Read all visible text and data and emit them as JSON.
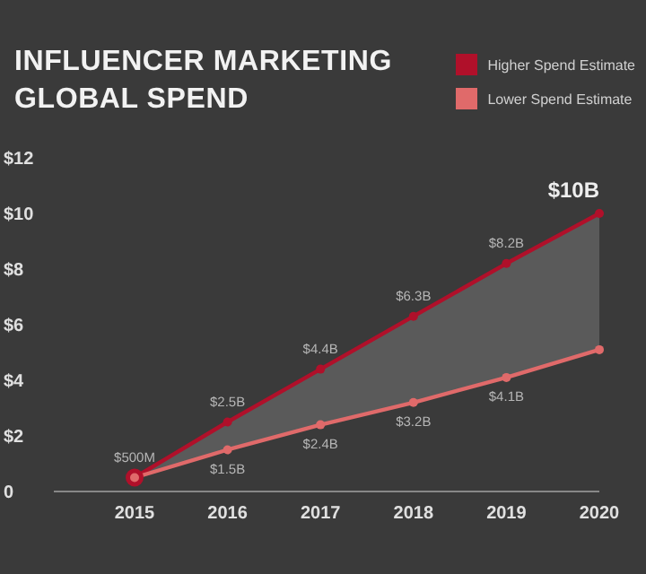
{
  "chart_data": {
    "type": "line",
    "title": "INFLUENCER MARKETING GLOBAL SPEND",
    "categories": [
      "2015",
      "2016",
      "2017",
      "2018",
      "2019",
      "2020"
    ],
    "series": [
      {
        "name": "Higher Spend Estimate",
        "color": "#b0102a",
        "values": [
          0.5,
          2.5,
          4.4,
          6.3,
          8.2,
          10
        ],
        "value_labels": [
          null,
          "$2.5B",
          "$4.4B",
          "$6.3B",
          "$8.2B",
          "$10B"
        ],
        "lower": [
          0.5,
          1.5,
          2.4,
          3.2,
          4.1,
          5.1
        ],
        "upper": [
          0.5,
          2.5,
          4.4,
          6.3,
          8.2,
          10
        ]
      },
      {
        "name": "Lower Spend Estimate",
        "color": "#e06a6a",
        "values": [
          0.5,
          1.5,
          2.4,
          3.2,
          4.1,
          5.1
        ],
        "value_labels": [
          null,
          "$1.5B",
          "$2.4B",
          "$3.2B",
          "$4.1B",
          null
        ]
      }
    ],
    "ylim": [
      0,
      12
    ],
    "yticks": [
      {
        "value": 0,
        "label": "0"
      },
      {
        "value": 2,
        "label": "$2"
      },
      {
        "value": 4,
        "label": "$4"
      },
      {
        "value": 6,
        "label": "$6"
      },
      {
        "value": 8,
        "label": "$8"
      },
      {
        "value": 10,
        "label": "$10"
      },
      {
        "value": 12,
        "label": "$12"
      }
    ],
    "annotations": [
      {
        "text": "$500M",
        "x": "2015",
        "y": 0.5
      }
    ],
    "grid": false,
    "legend": "top right",
    "marker": "circle",
    "line_style": "solid"
  }
}
